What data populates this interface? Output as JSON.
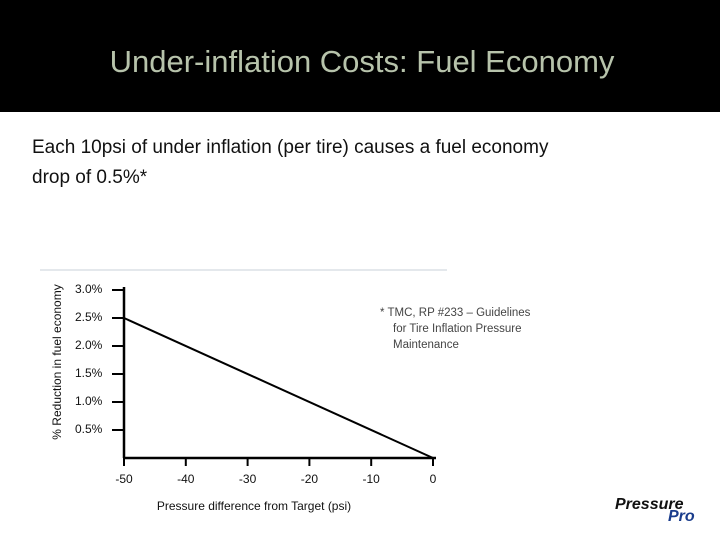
{
  "title": "Under-inflation Costs: Fuel Economy",
  "text": [
    "Each 10psi of under inflation (per tire) causes a fuel economy",
    "drop of 0.5%*"
  ],
  "footnote": [
    "* TMC, RP #233 – Guidelines",
    "for Tire Inflation Pressure",
    "Maintenance"
  ],
  "logo": [
    "Pressure",
    "Pro"
  ],
  "chart_data": {
    "type": "line",
    "x_label": "Pressure difference from Target (psi)",
    "y_label": "% Reduction in fuel economy",
    "x": [
      -50,
      0
    ],
    "series": [
      {
        "color": "#000000",
        "values": [
          2.5,
          0
        ]
      }
    ],
    "xlim": [
      -50,
      0
    ],
    "xticks": [
      -50,
      -40,
      -30,
      -20,
      -10,
      0
    ],
    "ylim": [
      0,
      3
    ],
    "yticks": [
      {
        "value": 3,
        "label": "3.0%"
      },
      {
        "value": 2.5,
        "label": "2.5%"
      },
      {
        "value": 2,
        "label": "2.0%"
      },
      {
        "value": 1.5,
        "label": "1.5%"
      },
      {
        "value": 1,
        "label": "1.0%"
      },
      {
        "value": 0.5,
        "label": "0.5%"
      }
    ]
  }
}
